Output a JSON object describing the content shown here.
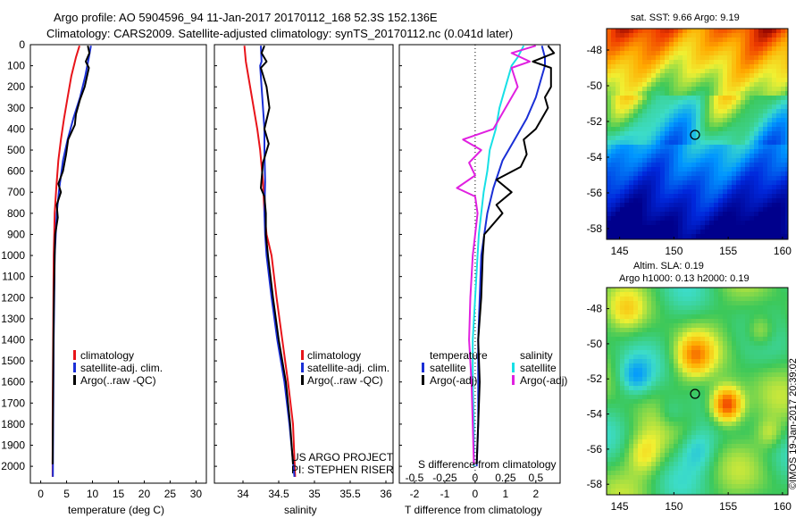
{
  "header": {
    "line1": "Argo profile: AO 5904596_94 11-Jan-2017 20170112_168 52.3S 152.136E",
    "line2": "Climatology: CARS2009. Satellite-adjusted climatology: synTS_20170112.nc (0.041d later)"
  },
  "colors": {
    "climatology": "#e8141a",
    "satellite": "#1a2fd6",
    "argo": "#000000",
    "salinity_sat": "#17e0e6",
    "salinity_argo": "#e020e0"
  },
  "chart_data": [
    {
      "type": "line",
      "xlabel": "temperature (deg C)",
      "xlim": [
        -2,
        32
      ],
      "xticks": [
        "0",
        "5",
        "10",
        "15",
        "20",
        "25",
        "30"
      ],
      "ylim": [
        0,
        2080
      ],
      "yticks": [
        "0",
        "100",
        "200",
        "300",
        "400",
        "500",
        "600",
        "700",
        "800",
        "900",
        "1000",
        "1100",
        "1200",
        "1300",
        "1400",
        "1500",
        "1600",
        "1700",
        "1800",
        "1900",
        "2000"
      ],
      "legend": [
        "climatology",
        "satellite-adj. clim.",
        "Argo(..raw -QC)"
      ],
      "series": [
        {
          "name": "climatology",
          "points": [
            [
              7.5,
              5
            ],
            [
              6.8,
              60
            ],
            [
              5.9,
              150
            ],
            [
              5.2,
              250
            ],
            [
              4.5,
              350
            ],
            [
              3.9,
              450
            ],
            [
              3.4,
              550
            ],
            [
              3.0,
              680
            ],
            [
              2.7,
              800
            ],
            [
              2.6,
              900
            ],
            [
              2.5,
              1000
            ],
            [
              2.45,
              1200
            ],
            [
              2.4,
              1400
            ],
            [
              2.35,
              1600
            ],
            [
              2.3,
              1800
            ],
            [
              2.3,
              2050
            ]
          ]
        },
        {
          "name": "satellite-adj. clim.",
          "points": [
            [
              9.7,
              5
            ],
            [
              9.3,
              60
            ],
            [
              8.6,
              150
            ],
            [
              7.6,
              250
            ],
            [
              6.3,
              350
            ],
            [
              5.2,
              450
            ],
            [
              4.3,
              550
            ],
            [
              3.6,
              680
            ],
            [
              3.1,
              800
            ],
            [
              2.9,
              900
            ],
            [
              2.7,
              1000
            ],
            [
              2.6,
              1200
            ],
            [
              2.5,
              1400
            ],
            [
              2.45,
              1600
            ],
            [
              2.4,
              1800
            ],
            [
              2.35,
              2050
            ]
          ]
        },
        {
          "name": "Argo(..raw -QC)",
          "points": [
            [
              9.1,
              5
            ],
            [
              9.4,
              40
            ],
            [
              8.7,
              80
            ],
            [
              9.3,
              110
            ],
            [
              8.5,
              200
            ],
            [
              7.6,
              260
            ],
            [
              6.8,
              330
            ],
            [
              6.6,
              380
            ],
            [
              5.3,
              450
            ],
            [
              4.9,
              520
            ],
            [
              4.3,
              600
            ],
            [
              3.4,
              660
            ],
            [
              3.9,
              700
            ],
            [
              3.1,
              760
            ],
            [
              3.3,
              820
            ],
            [
              2.8,
              900
            ],
            [
              2.7,
              1000
            ],
            [
              2.55,
              1200
            ],
            [
              2.45,
              1400
            ],
            [
              2.4,
              1600
            ],
            [
              2.35,
              1800
            ],
            [
              2.3,
              1990
            ]
          ]
        }
      ]
    },
    {
      "type": "line",
      "xlabel": "salinity",
      "xlim": [
        33.6,
        36.1
      ],
      "xticks": [
        "34",
        "34.5",
        "35",
        "35.5",
        "36"
      ],
      "ylim": [
        0,
        2080
      ],
      "legend": [
        "climatology",
        "satellite-adj. clim.",
        "Argo(..raw -QC)"
      ],
      "series": [
        {
          "name": "climatology",
          "points": [
            [
              34.02,
              5
            ],
            [
              34.04,
              80
            ],
            [
              34.1,
              200
            ],
            [
              34.15,
              300
            ],
            [
              34.2,
              400
            ],
            [
              34.24,
              500
            ],
            [
              34.28,
              650
            ],
            [
              34.3,
              800
            ],
            [
              34.33,
              900
            ],
            [
              34.4,
              1000
            ],
            [
              34.47,
              1200
            ],
            [
              34.55,
              1400
            ],
            [
              34.63,
              1600
            ],
            [
              34.7,
              1800
            ],
            [
              34.73,
              2050
            ]
          ]
        },
        {
          "name": "satellite-adj. clim.",
          "points": [
            [
              34.25,
              5
            ],
            [
              34.26,
              80
            ],
            [
              34.24,
              100
            ],
            [
              34.26,
              200
            ],
            [
              34.28,
              300
            ],
            [
              34.3,
              400
            ],
            [
              34.3,
              500
            ],
            [
              34.31,
              650
            ],
            [
              34.3,
              800
            ],
            [
              34.31,
              900
            ],
            [
              34.33,
              1000
            ],
            [
              34.4,
              1200
            ],
            [
              34.48,
              1400
            ],
            [
              34.58,
              1600
            ],
            [
              34.65,
              1800
            ],
            [
              34.72,
              2050
            ]
          ]
        },
        {
          "name": "Argo(..raw -QC)",
          "points": [
            [
              34.3,
              5
            ],
            [
              34.26,
              40
            ],
            [
              34.33,
              80
            ],
            [
              34.25,
              110
            ],
            [
              34.33,
              200
            ],
            [
              34.37,
              300
            ],
            [
              34.3,
              400
            ],
            [
              34.36,
              470
            ],
            [
              34.28,
              560
            ],
            [
              34.25,
              680
            ],
            [
              34.3,
              720
            ],
            [
              34.32,
              800
            ],
            [
              34.32,
              900
            ],
            [
              34.35,
              1000
            ],
            [
              34.42,
              1200
            ],
            [
              34.5,
              1400
            ],
            [
              34.6,
              1600
            ],
            [
              34.66,
              1800
            ],
            [
              34.7,
              1990
            ]
          ]
        }
      ],
      "annotations": [
        "US ARGO PROJECT",
        "PI: STEPHEN RISER"
      ]
    },
    {
      "type": "line",
      "xlabel": "T difference from climatology",
      "x2label": "S difference from climatology",
      "xlim": [
        -2.5,
        2.8
      ],
      "xticks": [
        "-2",
        "-1",
        "0",
        "1",
        "2"
      ],
      "x2ticks": [
        "-0.5",
        "-0.25",
        "0",
        "0.25",
        "0.5"
      ],
      "ylim": [
        0,
        2080
      ],
      "legend_temperature_title": "temperature",
      "legend_salinity_title": "salinity",
      "legend": [
        "satellite",
        "Argo(-adj)",
        "satellite",
        "Argo(-adj)"
      ],
      "series": [
        {
          "name": "temperature satellite",
          "points": [
            [
              2.2,
              5
            ],
            [
              2.3,
              60
            ],
            [
              2.3,
              100
            ],
            [
              2.2,
              150
            ],
            [
              2.0,
              250
            ],
            [
              1.7,
              350
            ],
            [
              1.3,
              450
            ],
            [
              0.9,
              550
            ],
            [
              0.6,
              680
            ],
            [
              0.4,
              800
            ],
            [
              0.3,
              900
            ],
            [
              0.2,
              1000
            ],
            [
              0.15,
              1200
            ],
            [
              0.1,
              1400
            ],
            [
              0.1,
              1600
            ],
            [
              0.1,
              1800
            ],
            [
              0.05,
              2000
            ]
          ]
        },
        {
          "name": "temperature Argo(-adj)",
          "points": [
            [
              2.4,
              5
            ],
            [
              2.6,
              40
            ],
            [
              1.9,
              80
            ],
            [
              2.5,
              110
            ],
            [
              2.5,
              200
            ],
            [
              2.3,
              250
            ],
            [
              2.4,
              300
            ],
            [
              2.2,
              350
            ],
            [
              2.0,
              400
            ],
            [
              1.6,
              450
            ],
            [
              1.7,
              520
            ],
            [
              1.5,
              580
            ],
            [
              0.7,
              640
            ],
            [
              1.2,
              700
            ],
            [
              0.7,
              760
            ],
            [
              0.9,
              800
            ],
            [
              0.3,
              900
            ],
            [
              0.25,
              1000
            ],
            [
              0.2,
              1200
            ],
            [
              0.1,
              1400
            ],
            [
              0.15,
              1600
            ],
            [
              0.1,
              1800
            ],
            [
              0.05,
              1990
            ]
          ]
        },
        {
          "name": "salinity satellite",
          "points": [
            [
              0.4,
              5
            ],
            [
              0.35,
              60
            ],
            [
              0.3,
              100
            ],
            [
              0.25,
              200
            ],
            [
              0.2,
              300
            ],
            [
              0.17,
              400
            ],
            [
              0.12,
              500
            ],
            [
              0.1,
              600
            ],
            [
              0.07,
              700
            ],
            [
              0.05,
              800
            ],
            [
              0.03,
              900
            ],
            [
              0.02,
              1000
            ],
            [
              0.0,
              1200
            ],
            [
              -0.02,
              1400
            ],
            [
              -0.02,
              1600
            ],
            [
              -0.01,
              1800
            ],
            [
              -0.01,
              2000
            ]
          ]
        },
        {
          "name": "salinity Argo(-adj)",
          "points": [
            [
              0.5,
              5
            ],
            [
              0.3,
              40
            ],
            [
              0.45,
              80
            ],
            [
              0.3,
              110
            ],
            [
              0.35,
              200
            ],
            [
              0.25,
              300
            ],
            [
              0.15,
              400
            ],
            [
              -0.1,
              450
            ],
            [
              0.05,
              500
            ],
            [
              -0.05,
              560
            ],
            [
              0.0,
              620
            ],
            [
              -0.15,
              680
            ],
            [
              0.0,
              720
            ],
            [
              0.02,
              800
            ],
            [
              0.0,
              900
            ],
            [
              -0.02,
              1000
            ],
            [
              -0.04,
              1200
            ],
            [
              -0.05,
              1400
            ],
            [
              -0.03,
              1600
            ],
            [
              -0.02,
              1800
            ],
            [
              -0.01,
              1990
            ]
          ]
        }
      ]
    }
  ],
  "maps": {
    "sst": {
      "title": "sat. SST: 9.66 Argo: 9.19",
      "xticks": [
        "145",
        "150",
        "155",
        "160"
      ],
      "yticks": [
        "-48",
        "-50",
        "-52",
        "-54",
        "-56",
        "-58"
      ]
    },
    "sla": {
      "title1": "Altim. SLA: 0.19",
      "title2": "Argo h1000: 0.13 h2000: 0.19",
      "xticks": [
        "145",
        "150",
        "155",
        "160"
      ],
      "yticks": [
        "-48",
        "-50",
        "-52",
        "-54",
        "-56",
        "-58"
      ],
      "credit": "©IMOS 19-Jan-2017 20:39:02"
    }
  }
}
